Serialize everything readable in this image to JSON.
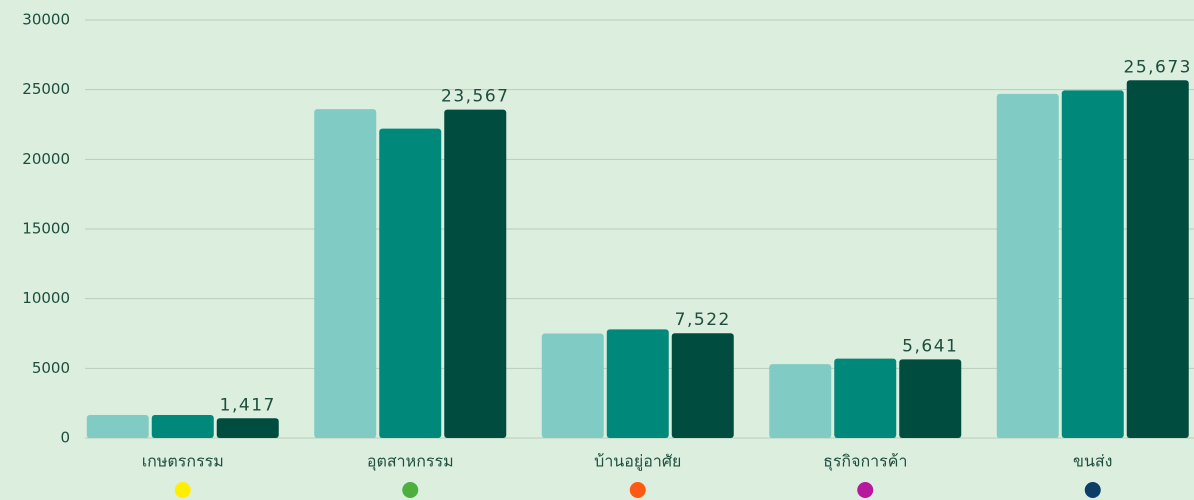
{
  "chart_data": {
    "type": "bar",
    "categories": [
      "เกษตรกรรม",
      "อุตสาหกรรม",
      "บ้านอยู่อาศัย",
      "ธุรกิจการค้า",
      "ขนส่ง"
    ],
    "category_colors": [
      "#ffee00",
      "#4caf3e",
      "#ff5a14",
      "#b8189e",
      "#0d3f66"
    ],
    "series": [
      {
        "color": "#80cbc4",
        "values": [
          1650,
          23600,
          7500,
          5300,
          24700
        ]
      },
      {
        "color": "#00897b",
        "values": [
          1650,
          22200,
          7800,
          5700,
          24950
        ]
      },
      {
        "color": "#004d40",
        "values": [
          1417,
          23567,
          7522,
          5641,
          25673
        ],
        "value_labels": [
          "1,417",
          "23,567",
          "7,522",
          "5,641",
          "25,673"
        ]
      }
    ],
    "ylim": [
      0,
      30000
    ],
    "yticks": [
      0,
      5000,
      10000,
      15000,
      20000,
      25000,
      30000
    ],
    "grid": true
  }
}
